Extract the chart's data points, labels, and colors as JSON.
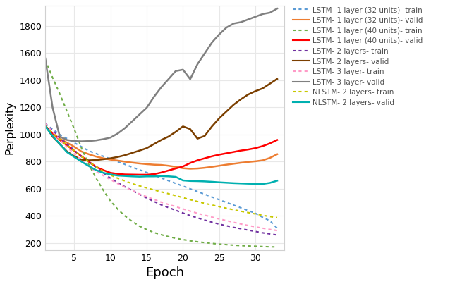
{
  "xlabel": "Epoch",
  "ylabel": "Perplexity",
  "ylim": [
    150,
    1950
  ],
  "xlim": [
    1,
    34
  ],
  "yticks": [
    200,
    400,
    600,
    800,
    1000,
    1200,
    1400,
    1600,
    1800
  ],
  "xticks": [
    5,
    10,
    15,
    20,
    25,
    30
  ],
  "series": [
    {
      "label": "LSTM- 1 layer (32 units)- train",
      "color": "#5B9BD5",
      "linestyle": "dotted",
      "linewidth": 1.5,
      "x": [
        1,
        2,
        3,
        4,
        5,
        6,
        7,
        8,
        9,
        10,
        11,
        12,
        13,
        14,
        15,
        16,
        17,
        18,
        19,
        20,
        21,
        22,
        23,
        24,
        25,
        26,
        27,
        28,
        29,
        30,
        31,
        32,
        33
      ],
      "y": [
        1080,
        1040,
        1000,
        970,
        940,
        910,
        880,
        860,
        840,
        820,
        800,
        780,
        760,
        740,
        720,
        700,
        680,
        660,
        640,
        620,
        600,
        580,
        560,
        540,
        520,
        500,
        480,
        460,
        440,
        420,
        390,
        365,
        310
      ]
    },
    {
      "label": "LSTM- 1 layer (32 units)- valid",
      "color": "#ED7D31",
      "linestyle": "solid",
      "linewidth": 1.8,
      "x": [
        1,
        2,
        3,
        4,
        5,
        6,
        7,
        8,
        9,
        10,
        11,
        12,
        13,
        14,
        15,
        16,
        17,
        18,
        19,
        20,
        21,
        22,
        23,
        24,
        25,
        26,
        27,
        28,
        29,
        30,
        31,
        32,
        33
      ],
      "y": [
        1060,
        1010,
        970,
        940,
        910,
        875,
        855,
        838,
        825,
        815,
        808,
        800,
        793,
        787,
        782,
        778,
        776,
        770,
        762,
        752,
        748,
        750,
        755,
        762,
        770,
        778,
        785,
        792,
        798,
        803,
        810,
        828,
        855
      ]
    },
    {
      "label": "LSTM- 1 layer (40 units)- train",
      "color": "#70AD47",
      "linestyle": "dotted",
      "linewidth": 1.5,
      "x": [
        1,
        2,
        3,
        4,
        5,
        6,
        7,
        8,
        9,
        10,
        11,
        12,
        13,
        14,
        15,
        16,
        17,
        18,
        19,
        20,
        21,
        22,
        23,
        24,
        25,
        26,
        27,
        28,
        29,
        30,
        31,
        32,
        33
      ],
      "y": [
        1550,
        1420,
        1300,
        1170,
        1040,
        900,
        780,
        680,
        590,
        510,
        450,
        400,
        360,
        325,
        300,
        278,
        262,
        248,
        236,
        226,
        217,
        210,
        204,
        198,
        193,
        189,
        185,
        182,
        179,
        177,
        175,
        173,
        172
      ]
    },
    {
      "label": "LSTM- 1 layer (40 units)- valid",
      "color": "#FF0000",
      "linestyle": "solid",
      "linewidth": 1.8,
      "x": [
        1,
        2,
        3,
        4,
        5,
        6,
        7,
        8,
        9,
        10,
        11,
        12,
        13,
        14,
        15,
        16,
        17,
        18,
        19,
        20,
        21,
        22,
        23,
        24,
        25,
        26,
        27,
        28,
        29,
        30,
        31,
        32,
        33
      ],
      "y": [
        1060,
        1010,
        960,
        920,
        880,
        840,
        800,
        762,
        738,
        718,
        710,
        706,
        705,
        704,
        704,
        708,
        720,
        735,
        750,
        765,
        790,
        810,
        825,
        840,
        852,
        862,
        872,
        882,
        890,
        900,
        915,
        935,
        960
      ]
    },
    {
      "label": "LSTM- 2 layers- train",
      "color": "#7030A0",
      "linestyle": "dotted",
      "linewidth": 1.5,
      "x": [
        1,
        2,
        3,
        4,
        5,
        6,
        7,
        8,
        9,
        10,
        11,
        12,
        13,
        14,
        15,
        16,
        17,
        18,
        19,
        20,
        21,
        22,
        23,
        24,
        25,
        26,
        27,
        28,
        29,
        30,
        31,
        32,
        33
      ],
      "y": [
        1080,
        1030,
        975,
        930,
        885,
        838,
        798,
        758,
        718,
        678,
        645,
        615,
        588,
        560,
        532,
        507,
        482,
        462,
        442,
        422,
        403,
        386,
        370,
        354,
        340,
        328,
        316,
        306,
        296,
        286,
        276,
        268,
        260
      ]
    },
    {
      "label": "LSTM- 2 layers- valid",
      "color": "#7B3F00",
      "linestyle": "solid",
      "linewidth": 1.8,
      "x": [
        1,
        2,
        3,
        4,
        5,
        6,
        7,
        8,
        9,
        10,
        11,
        12,
        13,
        14,
        15,
        16,
        17,
        18,
        19,
        20,
        21,
        22,
        23,
        24,
        25,
        26,
        27,
        28,
        29,
        30,
        31,
        32,
        33
      ],
      "y": [
        1070,
        985,
        930,
        875,
        840,
        815,
        810,
        812,
        818,
        825,
        835,
        848,
        865,
        882,
        900,
        930,
        960,
        985,
        1020,
        1060,
        1040,
        970,
        990,
        1060,
        1120,
        1170,
        1220,
        1260,
        1295,
        1320,
        1340,
        1375,
        1410
      ]
    },
    {
      "label": "LSTM- 3 layer- train",
      "color": "#FF9AC7",
      "linestyle": "dotted",
      "linewidth": 1.5,
      "x": [
        1,
        2,
        3,
        4,
        5,
        6,
        7,
        8,
        9,
        10,
        11,
        12,
        13,
        14,
        15,
        16,
        17,
        18,
        19,
        20,
        21,
        22,
        23,
        24,
        25,
        26,
        27,
        28,
        29,
        30,
        31,
        32,
        33
      ],
      "y": [
        1080,
        1020,
        960,
        908,
        858,
        808,
        768,
        728,
        698,
        668,
        638,
        612,
        587,
        562,
        542,
        522,
        502,
        485,
        469,
        452,
        436,
        420,
        406,
        392,
        378,
        366,
        353,
        341,
        330,
        320,
        310,
        301,
        293
      ]
    },
    {
      "label": "LSTM- 3 layer- valid",
      "color": "#808080",
      "linestyle": "solid",
      "linewidth": 1.8,
      "x": [
        1,
        2,
        3,
        4,
        5,
        6,
        7,
        8,
        9,
        10,
        11,
        12,
        13,
        14,
        15,
        16,
        17,
        18,
        19,
        20,
        21,
        22,
        23,
        24,
        25,
        26,
        27,
        28,
        29,
        30,
        31,
        32,
        33
      ],
      "y": [
        1560,
        1200,
        985,
        960,
        952,
        950,
        952,
        957,
        966,
        978,
        1008,
        1048,
        1098,
        1148,
        1198,
        1278,
        1348,
        1408,
        1468,
        1478,
        1408,
        1518,
        1598,
        1678,
        1738,
        1788,
        1818,
        1828,
        1848,
        1868,
        1888,
        1898,
        1928
      ]
    },
    {
      "label": "NLSTM- 2 layers- train",
      "color": "#C8C800",
      "linestyle": "dotted",
      "linewidth": 1.5,
      "x": [
        1,
        2,
        3,
        4,
        5,
        6,
        7,
        8,
        9,
        10,
        11,
        12,
        13,
        14,
        15,
        16,
        17,
        18,
        19,
        20,
        21,
        22,
        23,
        24,
        25,
        26,
        27,
        28,
        29,
        30,
        31,
        32,
        33
      ],
      "y": [
        1060,
        1010,
        965,
        920,
        880,
        838,
        800,
        762,
        730,
        702,
        678,
        658,
        638,
        622,
        607,
        592,
        578,
        564,
        550,
        535,
        520,
        507,
        493,
        481,
        469,
        457,
        446,
        435,
        425,
        415,
        405,
        396,
        388
      ]
    },
    {
      "label": "NLSTM- 2 layers- valid",
      "color": "#00B0B0",
      "linestyle": "solid",
      "linewidth": 1.8,
      "x": [
        1,
        2,
        3,
        4,
        5,
        6,
        7,
        8,
        9,
        10,
        11,
        12,
        13,
        14,
        15,
        16,
        17,
        18,
        19,
        20,
        21,
        22,
        23,
        24,
        25,
        26,
        27,
        28,
        29,
        30,
        31,
        32,
        33
      ],
      "y": [
        1060,
        990,
        930,
        870,
        835,
        800,
        768,
        738,
        718,
        706,
        698,
        695,
        692,
        690,
        692,
        692,
        694,
        692,
        688,
        662,
        658,
        657,
        655,
        652,
        648,
        645,
        642,
        640,
        638,
        637,
        636,
        644,
        660
      ]
    }
  ],
  "background_color": "#ffffff",
  "grid_color": "#E8E8E8",
  "legend_fontsize": 7.5,
  "xlabel_fontsize": 13,
  "ylabel_fontsize": 11
}
